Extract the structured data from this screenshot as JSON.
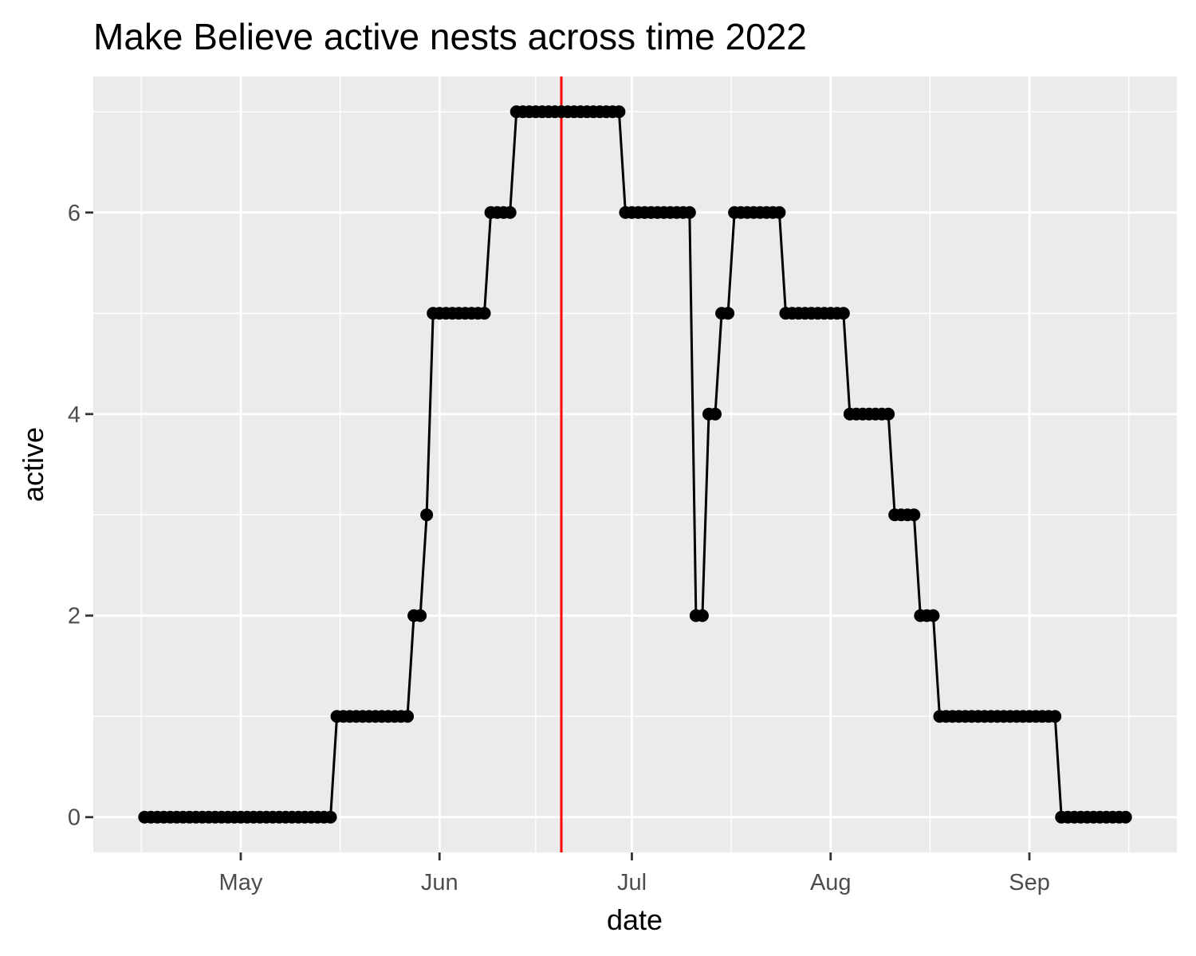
{
  "chart_data": {
    "type": "line",
    "title": "Make Believe active nests across time 2022",
    "xlabel": "date",
    "ylabel": "active",
    "x_ticks": [
      "May",
      "Jun",
      "Jul",
      "Aug",
      "Sep"
    ],
    "x_tick_dates": [
      "2022-05-01",
      "2022-06-01",
      "2022-07-01",
      "2022-08-01",
      "2022-09-01"
    ],
    "xlim": [
      "2022-04-08",
      "2022-09-24"
    ],
    "y_ticks": [
      "0",
      "2",
      "4",
      "6"
    ],
    "ylim": [
      -0.35,
      7.35
    ],
    "grid": true,
    "reference_line": {
      "x": "2022-06-20",
      "color": "#ff0000"
    },
    "series": [
      {
        "color": "#000000",
        "points": [
          [
            "2022-04-16",
            0
          ],
          [
            "2022-05-15",
            0
          ],
          [
            "2022-05-16",
            1
          ],
          [
            "2022-05-27",
            1
          ],
          [
            "2022-05-28",
            2
          ],
          [
            "2022-05-29",
            2
          ],
          [
            "2022-05-30",
            3
          ],
          [
            "2022-05-31",
            5
          ],
          [
            "2022-06-08",
            5
          ],
          [
            "2022-06-09",
            6
          ],
          [
            "2022-06-12",
            6
          ],
          [
            "2022-06-13",
            7
          ],
          [
            "2022-06-29",
            7
          ],
          [
            "2022-06-30",
            6
          ],
          [
            "2022-07-10",
            6
          ],
          [
            "2022-07-11",
            2
          ],
          [
            "2022-07-12",
            2
          ],
          [
            "2022-07-13",
            4
          ],
          [
            "2022-07-14",
            4
          ],
          [
            "2022-07-15",
            5
          ],
          [
            "2022-07-16",
            5
          ],
          [
            "2022-07-17",
            6
          ],
          [
            "2022-07-24",
            6
          ],
          [
            "2022-07-25",
            5
          ],
          [
            "2022-08-03",
            5
          ],
          [
            "2022-08-04",
            4
          ],
          [
            "2022-08-10",
            4
          ],
          [
            "2022-08-11",
            3
          ],
          [
            "2022-08-14",
            3
          ],
          [
            "2022-08-15",
            2
          ],
          [
            "2022-08-17",
            2
          ],
          [
            "2022-08-18",
            1
          ],
          [
            "2022-09-05",
            1
          ],
          [
            "2022-09-06",
            0
          ],
          [
            "2022-09-16",
            0
          ]
        ]
      }
    ]
  }
}
